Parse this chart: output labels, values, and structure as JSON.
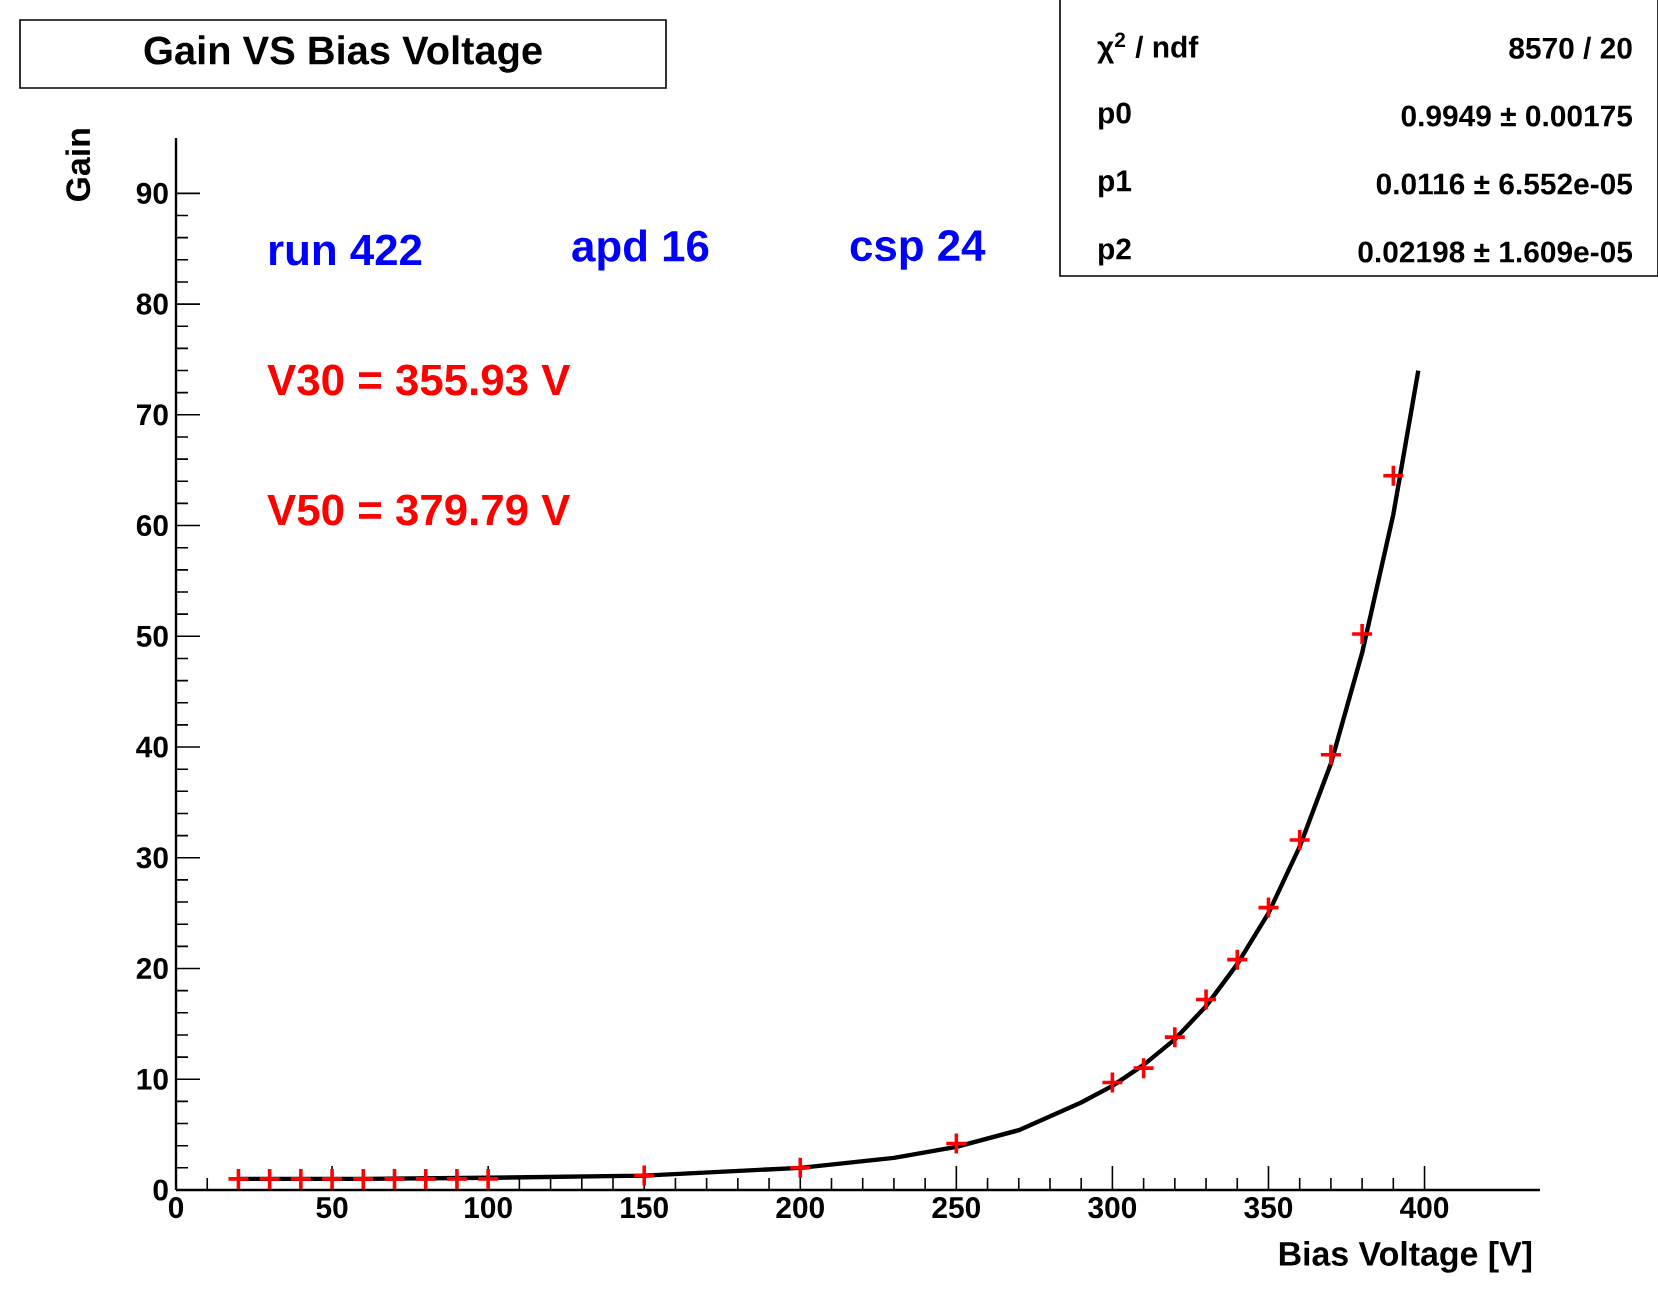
{
  "chart_data": {
    "type": "scatter",
    "title": "Gain VS Bias Voltage",
    "xlabel": "Bias Voltage [V]",
    "ylabel": "Gain",
    "xlim": [
      0,
      437
    ],
    "ylim": [
      0,
      95
    ],
    "xticks": [
      0,
      50,
      100,
      150,
      200,
      250,
      300,
      350,
      400
    ],
    "yticks": [
      0,
      10,
      20,
      30,
      40,
      50,
      60,
      70,
      80,
      90
    ],
    "grid": false,
    "marker": "cross",
    "series": [
      {
        "color": "#ff0000",
        "x": [
          20,
          30,
          40,
          50,
          60,
          70,
          80,
          90,
          100,
          150,
          200,
          250,
          300,
          310,
          320,
          330,
          340,
          350,
          360,
          370,
          380,
          390
        ],
        "values": [
          1,
          1,
          1,
          1,
          1,
          1,
          1,
          1,
          1,
          1.3,
          2,
          4.2,
          9.7,
          11,
          13.8,
          17.2,
          20.8,
          25.5,
          31.6,
          39.3,
          50.2,
          64.5
        ]
      },
      {
        "type": "line",
        "color": "#000000",
        "marker": "none",
        "x": [
          20,
          60,
          100,
          150,
          200,
          230,
          250,
          270,
          290,
          300,
          310,
          320,
          330,
          340,
          350,
          360,
          370,
          380,
          390,
          398
        ],
        "values": [
          1,
          1,
          1.1,
          1.3,
          2,
          2.9,
          3.9,
          5.4,
          7.9,
          9.4,
          11.3,
          13.6,
          16.6,
          20.4,
          25,
          31,
          38.5,
          48.5,
          61,
          74
        ]
      }
    ],
    "annotations": [
      "run 422",
      "apd 16",
      "csp 24",
      "V30 = 355.93 V",
      "V50 = 379.79 V",
      "χ$^{2}$ / ndf",
      "8570 / 20",
      "p0",
      "0.9949 ± 0.00175",
      "p1",
      "0.0116 ± 6.552e-05",
      "p2",
      "0.02198 ± 1.609e-05"
    ]
  }
}
